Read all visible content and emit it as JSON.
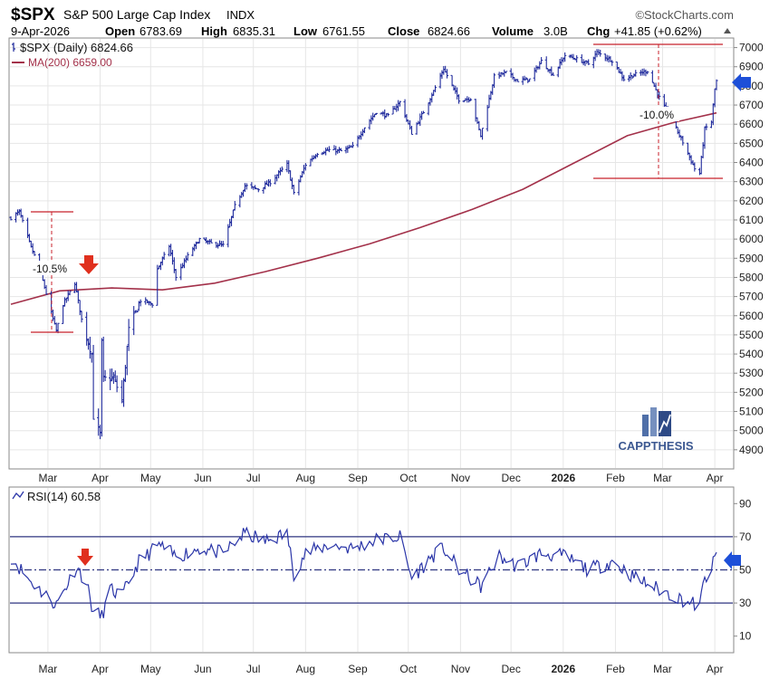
{
  "header": {
    "symbol": "$SPX",
    "name": "S&P 500 Large Cap Index",
    "exchange": "INDX",
    "brand": "©StockCharts.com",
    "date": "9-Apr-2026",
    "open_label": "Open",
    "open": "6783.69",
    "high_label": "High",
    "high": "6835.31",
    "low_label": "Low",
    "low": "6761.55",
    "close_label": "Close",
    "close": "6824.66",
    "volume_label": "Volume",
    "volume": "3.0B",
    "chg_label": "Chg",
    "chg": "+41.85 (+0.62%)"
  },
  "legend": {
    "price": "$SPX (Daily) 6824.66",
    "ma": "MA(200) 6659.00"
  },
  "rsi_legend": "RSI(14) 60.58",
  "watermark": "CAPPTHESIS",
  "annotations": {
    "left_drawdown": "-10.5%",
    "right_drawdown": "-10.0%"
  },
  "colors": {
    "price": "#1f2a9c",
    "ma": "#a3314a",
    "rsi": "#2a35a8",
    "arrow_down": "#e0301e",
    "arrow_left": "#1d4fd8",
    "bracket": "#c8202b",
    "grid": "#e6e6e6"
  },
  "chart_data": [
    {
      "type": "line",
      "title": "$SPX S&P 500 Large Cap Index",
      "x_ticks": [
        "Mar",
        "Apr",
        "May",
        "Jun",
        "Jul",
        "Aug",
        "Sep",
        "Oct",
        "Nov",
        "Dec",
        "2026",
        "Feb",
        "Mar",
        "Apr"
      ],
      "ylim": [
        4800,
        7050
      ],
      "y_ticks": [
        4900,
        5000,
        5100,
        5200,
        5300,
        5400,
        5500,
        5600,
        5700,
        5800,
        5900,
        6000,
        6100,
        6200,
        6300,
        6400,
        6500,
        6600,
        6700,
        6800,
        6900,
        7000
      ],
      "grid": false,
      "legend_position": "top-left",
      "series": [
        {
          "name": "$SPX (Daily)",
          "style": "ohlc",
          "points": [
            [
              "2025-02-14",
              6110
            ],
            [
              "2025-02-19",
              6144
            ],
            [
              "2025-02-26",
              5956
            ],
            [
              "2025-03-03",
              5850
            ],
            [
              "2025-03-10",
              5615
            ],
            [
              "2025-03-13",
              5520
            ],
            [
              "2025-03-17",
              5660
            ],
            [
              "2025-03-24",
              5770
            ],
            [
              "2025-03-28",
              5580
            ],
            [
              "2025-04-03",
              5400
            ],
            [
              "2025-04-04",
              5075
            ],
            [
              "2025-04-08",
              4980
            ],
            [
              "2025-04-09",
              5456
            ],
            [
              "2025-04-10",
              5268
            ],
            [
              "2025-04-16",
              5275
            ],
            [
              "2025-04-21",
              5158
            ],
            [
              "2025-04-25",
              5525
            ],
            [
              "2025-05-02",
              5686
            ],
            [
              "2025-05-09",
              5660
            ],
            [
              "2025-05-12",
              5845
            ],
            [
              "2025-05-19",
              5963
            ],
            [
              "2025-05-23",
              5802
            ],
            [
              "2025-05-30",
              5912
            ],
            [
              "2025-06-06",
              6000
            ],
            [
              "2025-06-13",
              5977
            ],
            [
              "2025-06-20",
              5968
            ],
            [
              "2025-06-27",
              6173
            ],
            [
              "2025-07-03",
              6279
            ],
            [
              "2025-07-11",
              6260
            ],
            [
              "2025-07-18",
              6297
            ],
            [
              "2025-07-28",
              6390
            ],
            [
              "2025-08-01",
              6238
            ],
            [
              "2025-08-08",
              6389
            ],
            [
              "2025-08-15",
              6449
            ],
            [
              "2025-08-22",
              6466
            ],
            [
              "2025-08-29",
              6460
            ],
            [
              "2025-09-05",
              6482
            ],
            [
              "2025-09-12",
              6584
            ],
            [
              "2025-09-19",
              6664
            ],
            [
              "2025-09-26",
              6643
            ],
            [
              "2025-10-03",
              6716
            ],
            [
              "2025-10-10",
              6553
            ],
            [
              "2025-10-17",
              6664
            ],
            [
              "2025-10-24",
              6791
            ],
            [
              "2025-10-29",
              6890
            ],
            [
              "2025-11-07",
              6728
            ],
            [
              "2025-11-14",
              6734
            ],
            [
              "2025-11-20",
              6538
            ],
            [
              "2025-11-28",
              6849
            ],
            [
              "2025-12-05",
              6870
            ],
            [
              "2025-12-12",
              6827
            ],
            [
              "2025-12-19",
              6834
            ],
            [
              "2025-12-26",
              6930
            ],
            [
              "2026-01-02",
              6858
            ],
            [
              "2026-01-09",
              6960
            ],
            [
              "2026-01-16",
              6940
            ],
            [
              "2026-01-23",
              6915
            ],
            [
              "2026-01-28",
              6975
            ],
            [
              "2026-02-06",
              6932
            ],
            [
              "2026-02-13",
              6836
            ],
            [
              "2026-02-20",
              6861
            ],
            [
              "2026-02-27",
              6878
            ],
            [
              "2026-03-06",
              6740
            ],
            [
              "2026-03-13",
              6632
            ],
            [
              "2026-03-20",
              6506
            ],
            [
              "2026-03-27",
              6368
            ],
            [
              "2026-03-30",
              6343
            ],
            [
              "2026-04-02",
              6575
            ],
            [
              "2026-04-06",
              6611
            ],
            [
              "2026-04-08",
              6783
            ],
            [
              "2026-04-09",
              6825
            ]
          ]
        },
        {
          "name": "MA(200)",
          "points": [
            [
              "2025-02-14",
              5660
            ],
            [
              "2025-03-15",
              5730
            ],
            [
              "2025-04-15",
              5745
            ],
            [
              "2025-05-15",
              5735
            ],
            [
              "2025-06-15",
              5770
            ],
            [
              "2025-07-15",
              5830
            ],
            [
              "2025-08-15",
              5900
            ],
            [
              "2025-09-15",
              5975
            ],
            [
              "2025-10-15",
              6060
            ],
            [
              "2025-11-15",
              6155
            ],
            [
              "2025-12-15",
              6260
            ],
            [
              "2026-01-15",
              6400
            ],
            [
              "2026-02-15",
              6540
            ],
            [
              "2026-03-15",
              6610
            ],
            [
              "2026-04-09",
              6659
            ]
          ]
        }
      ],
      "drawdowns": [
        {
          "label": "-10.5%",
          "from": 6144,
          "to": 5500
        },
        {
          "label": "-10.0%",
          "from": 7002,
          "to": 6316
        }
      ]
    },
    {
      "type": "line",
      "title": "RSI(14)",
      "ylim": [
        0,
        100
      ],
      "y_ticks": [
        10,
        30,
        50,
        70,
        90
      ],
      "reference_lines": [
        30,
        50,
        70
      ],
      "x_ticks": [
        "Mar",
        "Apr",
        "May",
        "Jun",
        "Jul",
        "Aug",
        "Sep",
        "Oct",
        "Nov",
        "Dec",
        "2026",
        "Feb",
        "Mar",
        "Apr"
      ],
      "series": [
        {
          "name": "RSI(14)",
          "points": [
            [
              "2025-02-14",
              58
            ],
            [
              "2025-02-24",
              45
            ],
            [
              "2025-03-05",
              36
            ],
            [
              "2025-03-13",
              29
            ],
            [
              "2025-03-25",
              52
            ],
            [
              "2025-03-31",
              42
            ],
            [
              "2025-04-04",
              24
            ],
            [
              "2025-04-09",
              22
            ],
            [
              "2025-04-14",
              38
            ],
            [
              "2025-04-21",
              34
            ],
            [
              "2025-05-01",
              55
            ],
            [
              "2025-05-13",
              65
            ],
            [
              "2025-05-23",
              58
            ],
            [
              "2025-06-06",
              63
            ],
            [
              "2025-06-20",
              60
            ],
            [
              "2025-07-03",
              72
            ],
            [
              "2025-07-15",
              67
            ],
            [
              "2025-07-28",
              72
            ],
            [
              "2025-08-01",
              48
            ],
            [
              "2025-08-08",
              60
            ],
            [
              "2025-08-22",
              65
            ],
            [
              "2025-09-05",
              63
            ],
            [
              "2025-09-19",
              68
            ],
            [
              "2025-10-03",
              70
            ],
            [
              "2025-10-10",
              45
            ],
            [
              "2025-10-24",
              60
            ],
            [
              "2025-10-29",
              63
            ],
            [
              "2025-11-07",
              50
            ],
            [
              "2025-11-20",
              40
            ],
            [
              "2025-12-01",
              58
            ],
            [
              "2025-12-12",
              52
            ],
            [
              "2025-12-26",
              60
            ],
            [
              "2026-01-09",
              58
            ],
            [
              "2026-01-23",
              50
            ],
            [
              "2026-02-06",
              55
            ],
            [
              "2026-02-20",
              45
            ],
            [
              "2026-03-06",
              38
            ],
            [
              "2026-03-20",
              32
            ],
            [
              "2026-03-30",
              28
            ],
            [
              "2026-04-02",
              45
            ],
            [
              "2026-04-06",
              50
            ],
            [
              "2026-04-09",
              60.58
            ]
          ]
        }
      ]
    }
  ]
}
